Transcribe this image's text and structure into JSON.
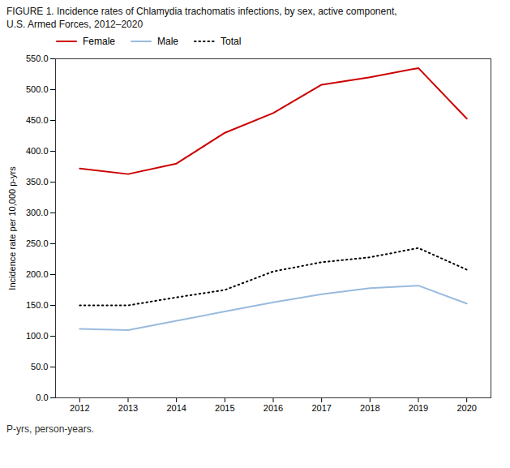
{
  "chart_data": {
    "type": "line",
    "title": "FIGURE 1. Incidence rates of Chlamydia trachomatis infections, by sex, active component,",
    "subtitle": "U.S. Armed Forces, 2012–2020",
    "caption": "P-yrs, person-years.",
    "ylabel": "Incidence rate per 10,000 p-yrs",
    "x": [
      2012,
      2013,
      2014,
      2015,
      2016,
      2017,
      2018,
      2019,
      2020
    ],
    "xlim": [
      2011.5,
      2020.5
    ],
    "xticks": [
      2012,
      2013,
      2014,
      2015,
      2016,
      2017,
      2018,
      2019,
      2020
    ],
    "ylim": [
      0,
      550
    ],
    "yticks": [
      {
        "value": 0,
        "label": "0.0"
      },
      {
        "value": 50,
        "label": "50.0"
      },
      {
        "value": 100,
        "label": "100.0"
      },
      {
        "value": 150,
        "label": "150.0"
      },
      {
        "value": 200,
        "label": "200.0"
      },
      {
        "value": 250,
        "label": "250.0"
      },
      {
        "value": 300,
        "label": "300.0"
      },
      {
        "value": 350,
        "label": "350.0"
      },
      {
        "value": 400,
        "label": "400.0"
      },
      {
        "value": 450,
        "label": "450.0"
      },
      {
        "value": 500,
        "label": "500.0"
      },
      {
        "value": 550,
        "label": "550.0"
      }
    ],
    "series": [
      {
        "name": "Female",
        "color": "#cc0000",
        "line_style": "solid",
        "values": [
          372,
          363,
          380,
          430,
          462,
          508,
          520,
          535,
          453
        ]
      },
      {
        "name": "Male",
        "color": "#99bbdd",
        "line_style": "solid",
        "values": [
          112,
          110,
          125,
          140,
          155,
          168,
          178,
          182,
          153
        ]
      },
      {
        "name": "Total",
        "color": "#000000",
        "line_style": "dotted",
        "values": [
          150,
          150,
          163,
          175,
          205,
          220,
          228,
          243,
          208
        ]
      }
    ],
    "legend": "upper left",
    "grid": false
  }
}
